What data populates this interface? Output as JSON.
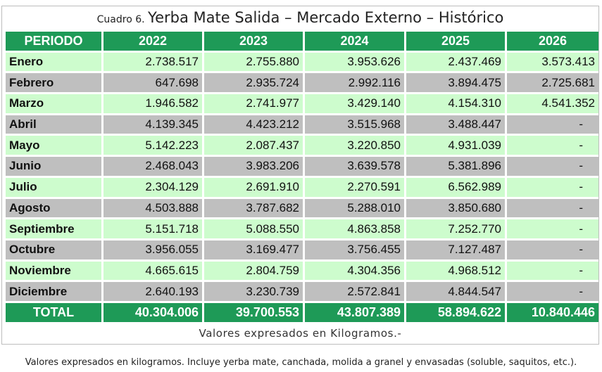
{
  "title": {
    "prefix": "Cuadro 6.",
    "main": "Yerba Mate Salida  – Mercado Externo – Histórico"
  },
  "table": {
    "header": [
      "PERIODO",
      "2022",
      "2023",
      "2024",
      "2025",
      "2026"
    ],
    "rows": [
      {
        "mes": "Enero",
        "v": [
          "2.738.517",
          "2.755.880",
          "3.953.626",
          "2.437.469",
          "3.573.413"
        ]
      },
      {
        "mes": "Febrero",
        "v": [
          "647.698",
          "2.935.724",
          "2.992.116",
          "3.894.475",
          "2.725.681"
        ]
      },
      {
        "mes": "Marzo",
        "v": [
          "1.946.582",
          "2.741.977",
          "3.429.140",
          "4.154.310",
          "4.541.352"
        ]
      },
      {
        "mes": "Abril",
        "v": [
          "4.139.345",
          "4.423.212",
          "3.515.968",
          "3.488.447",
          "-"
        ]
      },
      {
        "mes": "Mayo",
        "v": [
          "5.142.223",
          "2.087.437",
          "3.220.850",
          "4.931.039",
          "-"
        ]
      },
      {
        "mes": "Junio",
        "v": [
          "2.468.043",
          "3.983.206",
          "3.639.578",
          "5.381.896",
          "-"
        ]
      },
      {
        "mes": "Julio",
        "v": [
          "2.304.129",
          "2.691.910",
          "2.270.591",
          "6.562.989",
          "-"
        ]
      },
      {
        "mes": "Agosto",
        "v": [
          "4.503.888",
          "3.787.682",
          "5.288.010",
          "3.850.680",
          "-"
        ]
      },
      {
        "mes": "Septiembre",
        "v": [
          "5.151.718",
          "5.088.550",
          "4.863.858",
          "7.252.770",
          "-"
        ]
      },
      {
        "mes": "Octubre",
        "v": [
          "3.956.055",
          "3.169.477",
          "3.756.455",
          "7.127.487",
          "-"
        ]
      },
      {
        "mes": "Noviembre",
        "v": [
          "4.665.615",
          "2.804.759",
          "4.304.356",
          "4.968.512",
          "-"
        ]
      },
      {
        "mes": "Diciembre",
        "v": [
          "2.640.193",
          "3.230.739",
          "2.572.841",
          "4.844.547",
          "-"
        ]
      }
    ],
    "total": {
      "label": "TOTAL",
      "v": [
        "40.304.006",
        "39.700.553",
        "43.807.389",
        "58.894.622",
        "10.840.446"
      ]
    }
  },
  "units_note": "Valores expresados en Kilogramos.-",
  "footnote": "Valores expresados en kilogramos. Incluye yerba mate, canchada, molida a granel y envasadas (soluble, saquitos, etc.).",
  "colors": {
    "header_green": "#1e9a57",
    "row_light_green": "#cdfccd",
    "row_gray": "#bfbfbf"
  }
}
